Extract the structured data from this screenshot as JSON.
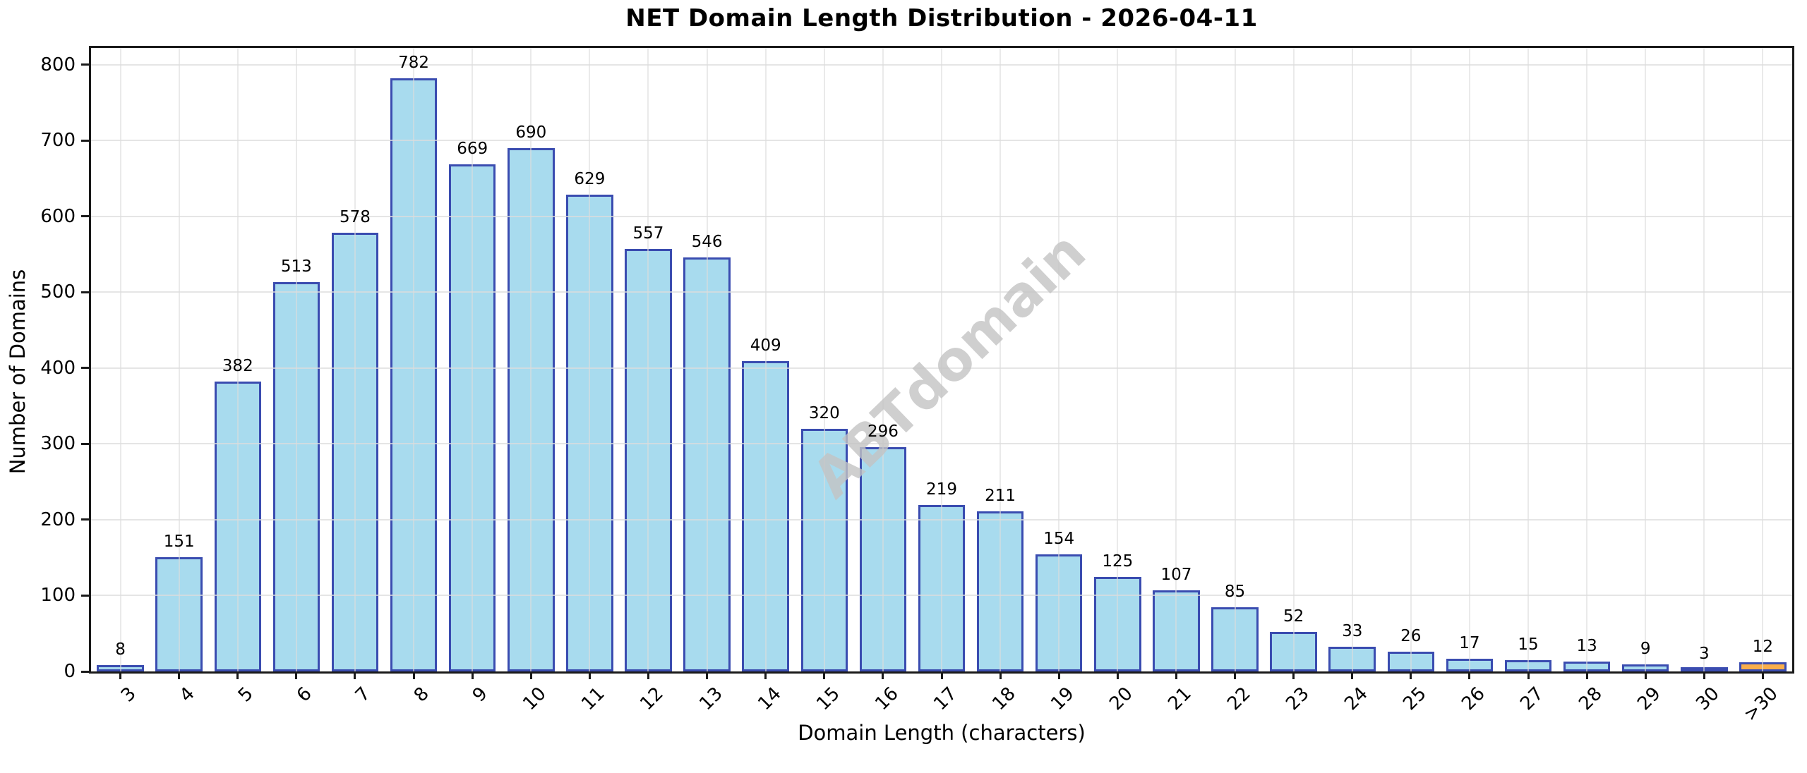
{
  "chart_data": {
    "type": "bar",
    "title": "NET Domain Length Distribution - 2026-04-11",
    "xlabel": "Domain Length (characters)",
    "ylabel": "Number of Domains",
    "categories": [
      "3",
      "4",
      "5",
      "6",
      "7",
      "8",
      "9",
      "10",
      "11",
      "12",
      "13",
      "14",
      "15",
      "16",
      "17",
      "18",
      "19",
      "20",
      "21",
      "22",
      "23",
      "24",
      "25",
      "26",
      "27",
      "28",
      "29",
      "30",
      ">30"
    ],
    "values": [
      8,
      151,
      382,
      513,
      578,
      782,
      669,
      690,
      629,
      557,
      546,
      409,
      320,
      296,
      219,
      211,
      154,
      125,
      107,
      85,
      52,
      33,
      26,
      17,
      15,
      13,
      9,
      3,
      12
    ],
    "yticks": [
      0,
      100,
      200,
      300,
      400,
      500,
      600,
      700,
      800
    ],
    "ylim": [
      0,
      822
    ],
    "grid": true,
    "legend": "none",
    "watermark": "ABTdomain",
    "colors": {
      "bar_fill": "#A8DBEE",
      "bar_edge": "#3A4CB0",
      "last_bar_fill": "#F9AE4B",
      "grid": "#dcdcdc",
      "watermark": "#c4c4c4",
      "spine": "#1a1a1a"
    }
  }
}
